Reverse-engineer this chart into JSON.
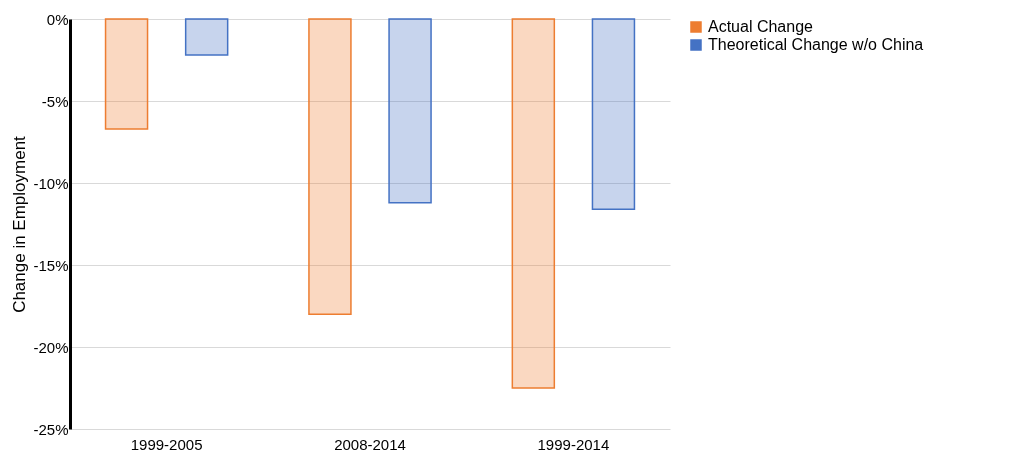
{
  "chart_data": {
    "type": "bar",
    "ylabel": "Change in Employment",
    "categories": [
      "1999-2005",
      "2008-2014",
      "1999-2014"
    ],
    "series": [
      {
        "name": "Actual Change",
        "color": "#ed7d31",
        "values": [
          -6.7,
          -18.0,
          -22.5
        ]
      },
      {
        "name": "Theoretical Change w/o China",
        "color": "#4472c4",
        "values": [
          -2.2,
          -11.2,
          -11.6
        ]
      }
    ],
    "ylim": [
      -25,
      0
    ],
    "yticks": [
      {
        "value": -25,
        "label": "-25%"
      },
      {
        "value": -20,
        "label": "-20%"
      },
      {
        "value": -15,
        "label": "-15%"
      },
      {
        "value": -10,
        "label": "-10%"
      },
      {
        "value": -5,
        "label": "-5%"
      },
      {
        "value": 0,
        "label": "0%"
      }
    ],
    "grid": "y",
    "legend": "right"
  }
}
